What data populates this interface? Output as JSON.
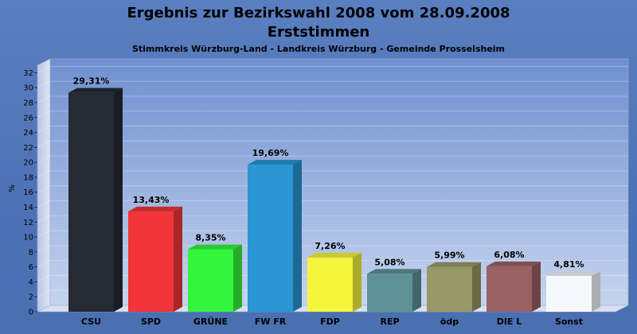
{
  "chart_data": {
    "type": "bar",
    "title": "Ergebnis zur Bezirkswahl 2008 vom 28.09.2008",
    "title2": "Erststimmen",
    "subtitle": "Stimmkreis Würzburg-Land - Landkreis Würzburg - Gemeinde Prosselsheim",
    "ylabel": "%",
    "xlabel": "",
    "ylim": [
      0,
      33
    ],
    "yticks": [
      "0",
      "2",
      "4",
      "6",
      "8",
      "10",
      "12",
      "14",
      "16",
      "18",
      "20",
      "22",
      "24",
      "26",
      "28",
      "30",
      "32"
    ],
    "grid": true,
    "categories": [
      "CSU",
      "SPD",
      "GRÜNE",
      "FW FR",
      "FDP",
      "REP",
      "ödp",
      "DIE L",
      "Sonst"
    ],
    "values": [
      29.31,
      13.43,
      8.35,
      19.69,
      7.26,
      5.08,
      5.99,
      6.08,
      4.81
    ],
    "value_labels": [
      "29,31%",
      "13,43%",
      "8,35%",
      "19,69%",
      "7,26%",
      "5,08%",
      "5,99%",
      "6,08%",
      "4,81%"
    ],
    "colors": [
      "#262a33",
      "#f13538",
      "#33f53c",
      "#2a96d3",
      "#f5f53c",
      "#5e9296",
      "#979865",
      "#9a6164",
      "#f5f8fc"
    ]
  }
}
